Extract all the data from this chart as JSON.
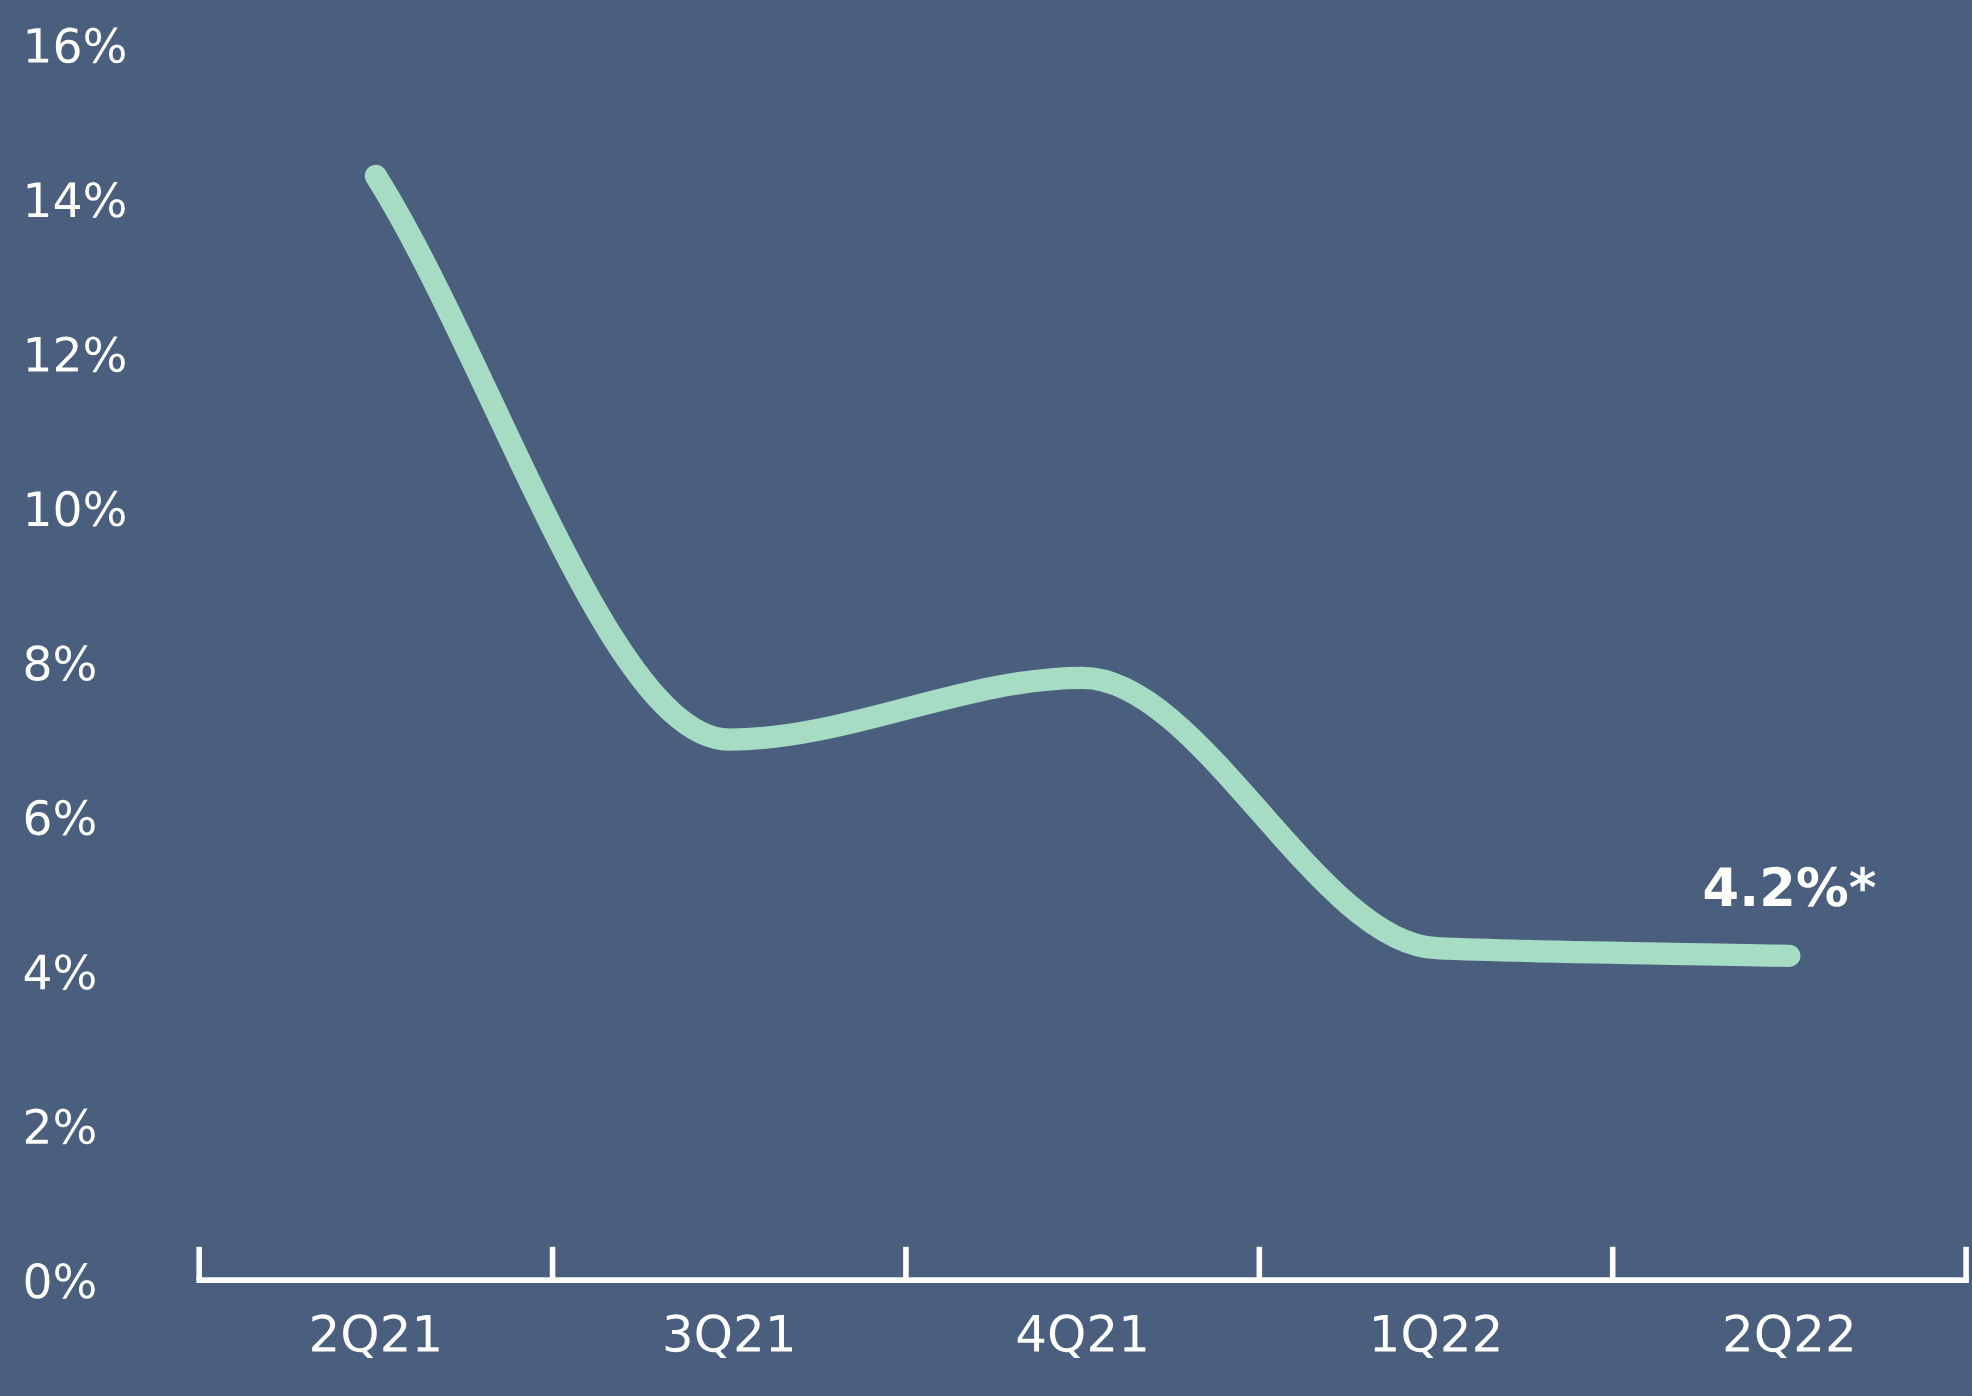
{
  "chart_data": {
    "type": "line",
    "categories": [
      "2Q21",
      "3Q21",
      "4Q21",
      "1Q22",
      "2Q22"
    ],
    "series": [
      {
        "color": "#a6dcc3",
        "values": [
          14.3,
          7.0,
          7.8,
          4.3,
          4.2
        ],
        "value_labels": [
          null,
          null,
          null,
          null,
          "4.2%*"
        ]
      }
    ],
    "ylim": [
      0,
      16
    ],
    "yticks": [
      {
        "value": 0,
        "label": "0%"
      },
      {
        "value": 2,
        "label": "2%"
      },
      {
        "value": 4,
        "label": "4%"
      },
      {
        "value": 6,
        "label": "6%"
      },
      {
        "value": 8,
        "label": "8%"
      },
      {
        "value": 10,
        "label": "10%"
      },
      {
        "value": 12,
        "label": "12%"
      },
      {
        "value": 14,
        "label": "14%"
      },
      {
        "value": 16,
        "label": "16%"
      }
    ],
    "grid": false,
    "legend": false,
    "marker": "none",
    "line_style": "solid"
  }
}
